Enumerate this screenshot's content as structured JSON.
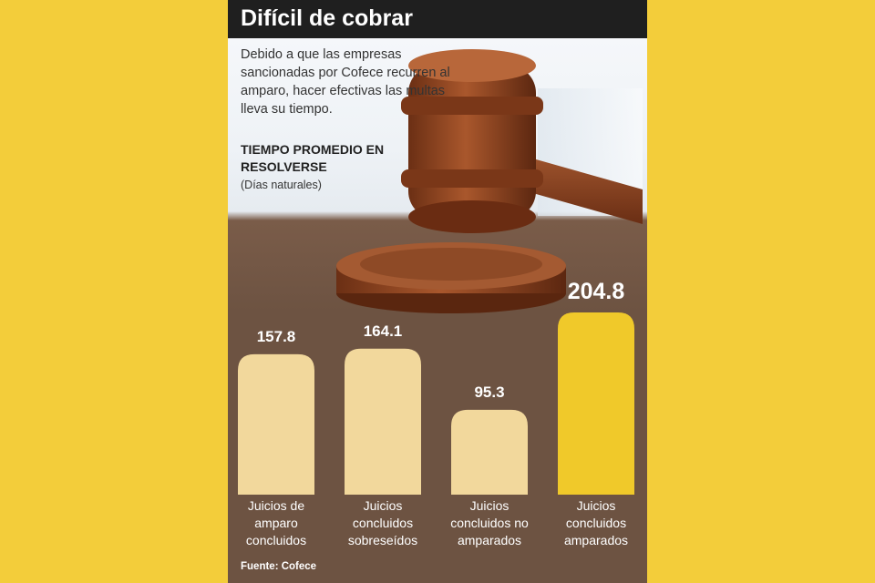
{
  "title": "Difícil de cobrar",
  "intro": "Debido a que las empresas sancionadas por Cofece recurren al amparo, hacer efectivas las multas lleva su tiempo.",
  "subtitle": "TIEMPO PROMEDIO EN RESOLVERSE",
  "unit": "(Días naturales)",
  "source": "Fuente: Cofece",
  "colors": {
    "background": "#f3cd3a",
    "panel": "#6d5342",
    "bar": "#f2d89c",
    "highlight": "#f0c92a",
    "title_bar": "#1f1f1f"
  },
  "chart_data": {
    "type": "bar",
    "title": "TIEMPO PROMEDIO EN RESOLVERSE",
    "ylabel": "(Días naturales)",
    "categories": [
      "Juicios de amparo concluidos",
      "Juicios concluidos sobreseídos",
      "Juicios concluidos no amparados",
      "Juicios concluidos amparados"
    ],
    "category_lines": [
      [
        "Juicios de",
        "amparo",
        "concluidos"
      ],
      [
        "Juicios",
        "concluidos",
        "sobreseídos"
      ],
      [
        "Juicios",
        "concluidos no",
        "amparados"
      ],
      [
        "Juicios",
        "concluidos",
        "amparados"
      ]
    ],
    "values": [
      157.8,
      164.1,
      95.3,
      204.8
    ],
    "value_labels": [
      "157.8",
      "164.1",
      "95.3",
      "204.8"
    ],
    "highlight_index": 3,
    "grid": false,
    "legend": "none"
  }
}
